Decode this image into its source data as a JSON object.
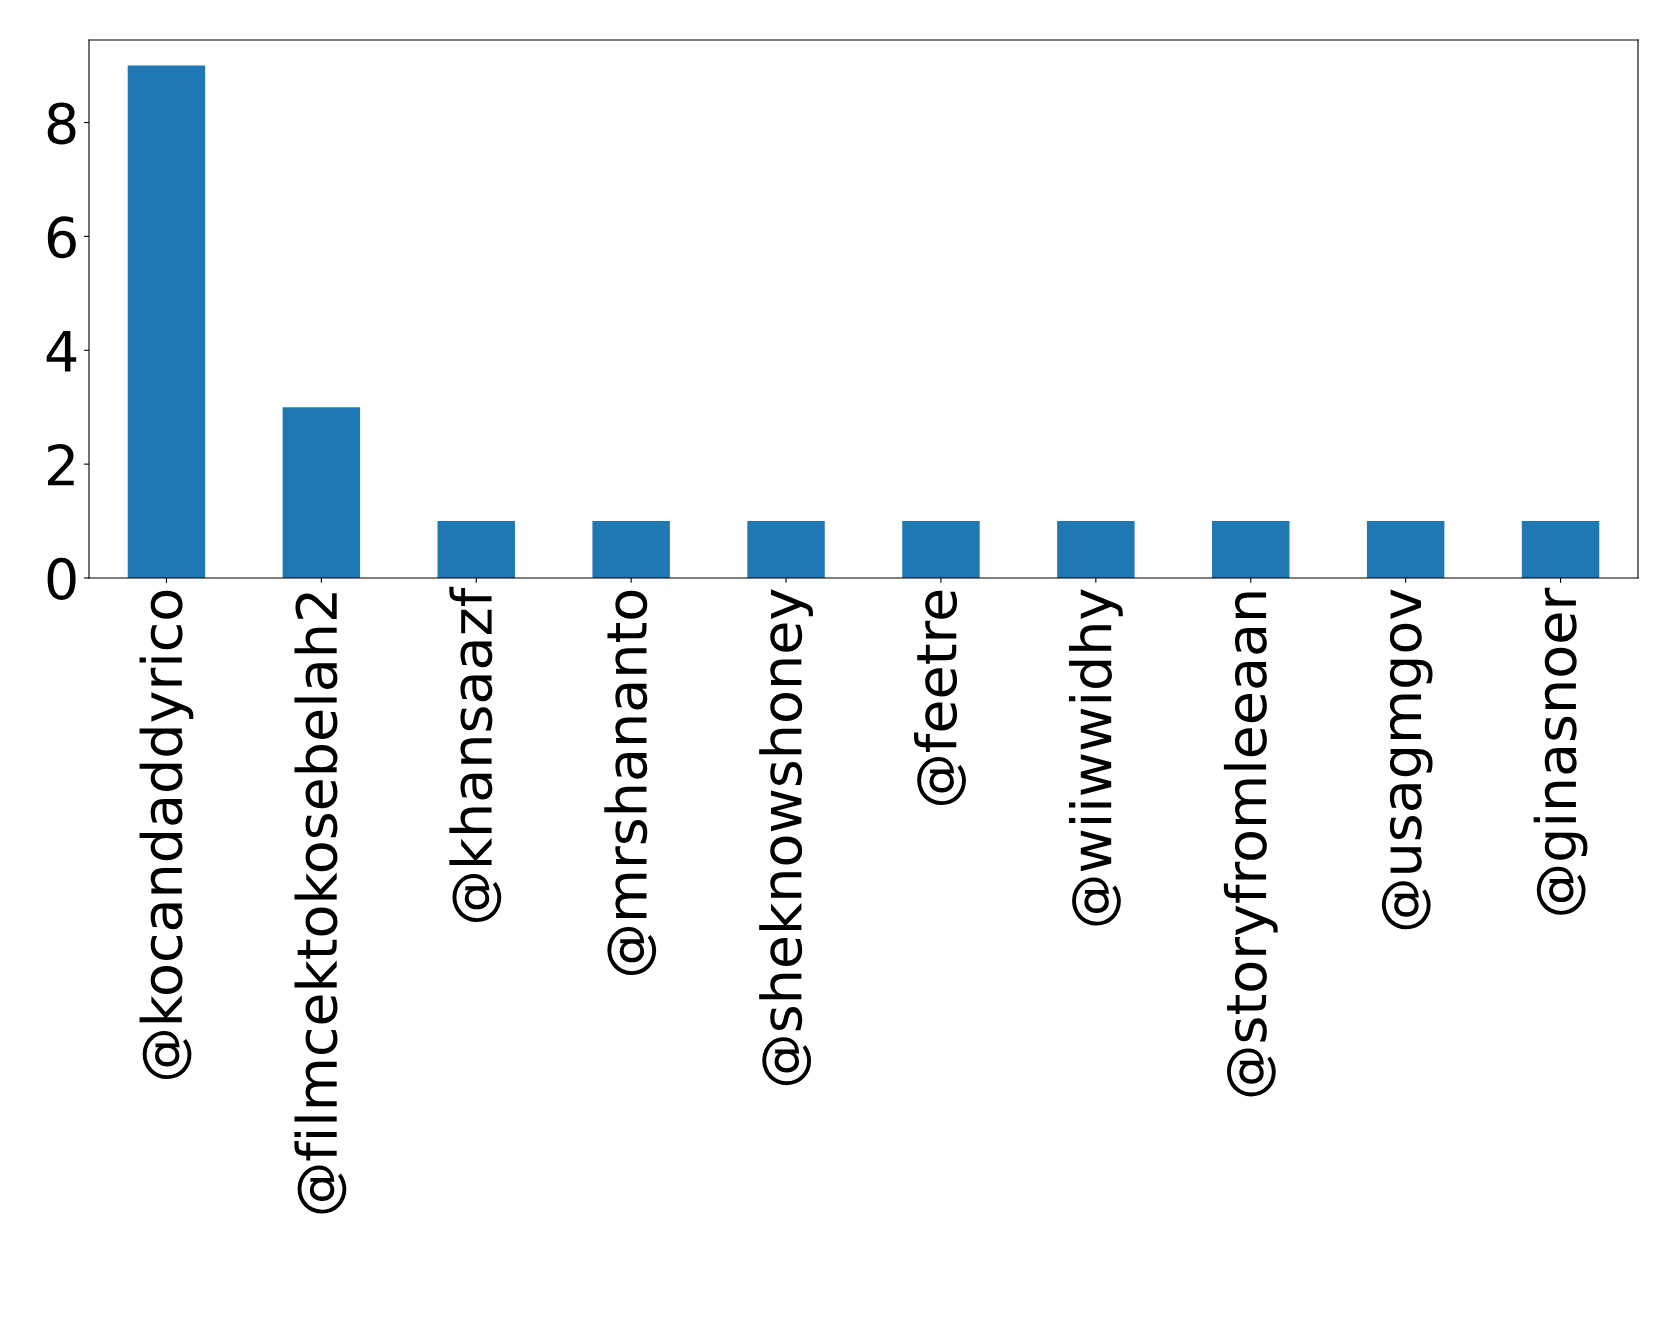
{
  "chart_data": {
    "type": "bar",
    "categories": [
      "@kocandaddyrico",
      "@filmcektokosebelah2",
      "@khansaazf",
      "@mrshananto",
      "@sheknowshoney",
      "@feetre",
      "@wiiwwidhy",
      "@storyfromleeaan",
      "@usagmgov",
      "@ginasnoer"
    ],
    "values": [
      9,
      3,
      1,
      1,
      1,
      1,
      1,
      1,
      1,
      1
    ],
    "color": "#1f77b4",
    "ylim": [
      0,
      9.45
    ],
    "yticks": [
      0,
      2,
      4,
      6,
      8
    ],
    "grid": false,
    "legend": false
  }
}
